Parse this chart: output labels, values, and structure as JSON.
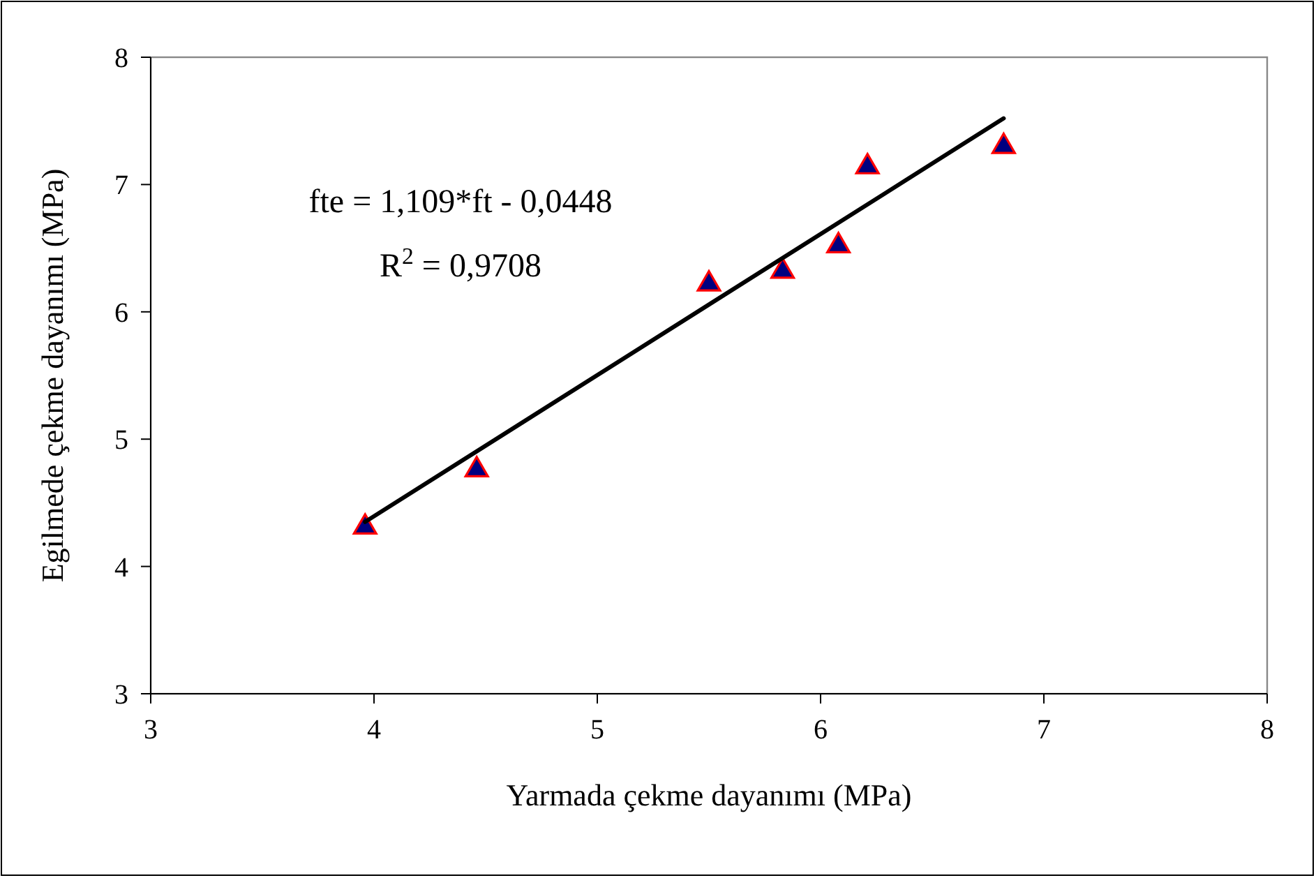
{
  "chart_data": {
    "type": "scatter",
    "xlabel": "Yarmada çekme dayanımı (MPa)",
    "ylabel": "Egilmede çekme dayanımı (MPa)",
    "annotations": [
      "fte = 1,109*ft - 0,0448",
      "R$^{2}$ = 0,9708"
    ],
    "xlim": [
      3,
      8
    ],
    "xticks": [
      3,
      4,
      5,
      6,
      7,
      8
    ],
    "ylim": [
      3,
      8
    ],
    "yticks": [
      3,
      4,
      5,
      6,
      7,
      8
    ],
    "grid": false,
    "marker": "triangle",
    "series": [
      {
        "color": "#000080",
        "x": [
          3.96,
          4.46,
          5.5,
          5.83,
          6.08,
          6.21,
          6.82
        ],
        "values": [
          4.32,
          4.77,
          6.23,
          6.33,
          6.53,
          7.15,
          7.31
        ]
      },
      {
        "type": "line",
        "color": "#000000",
        "marker": "none",
        "line_style": "solid",
        "x": [
          3.96,
          6.82
        ],
        "values": [
          4.35,
          7.52
        ]
      }
    ]
  }
}
